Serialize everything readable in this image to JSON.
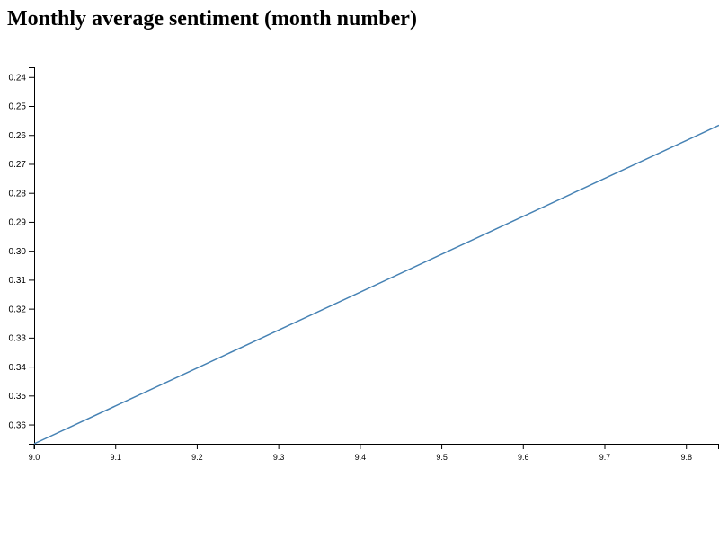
{
  "chart_data": {
    "type": "line",
    "title": "Monthly average sentiment (month number)",
    "xlabel": "",
    "ylabel": "",
    "xlim": [
      9.0,
      9.84
    ],
    "ylim": [
      0.2365,
      0.3665
    ],
    "y_inverted": true,
    "grid": false,
    "line_color": "#4682b4",
    "x_ticks": [
      "9.0",
      "9.1",
      "9.2",
      "9.3",
      "9.4",
      "9.5",
      "9.6",
      "9.7",
      "9.8"
    ],
    "y_ticks": [
      "0.24",
      "0.25",
      "0.26",
      "0.27",
      "0.28",
      "0.29",
      "0.30",
      "0.31",
      "0.32",
      "0.33",
      "0.34",
      "0.35",
      "0.36"
    ],
    "series": [
      {
        "x": [
          9.0,
          9.84
        ],
        "values": [
          0.3665,
          0.2565
        ]
      }
    ]
  }
}
